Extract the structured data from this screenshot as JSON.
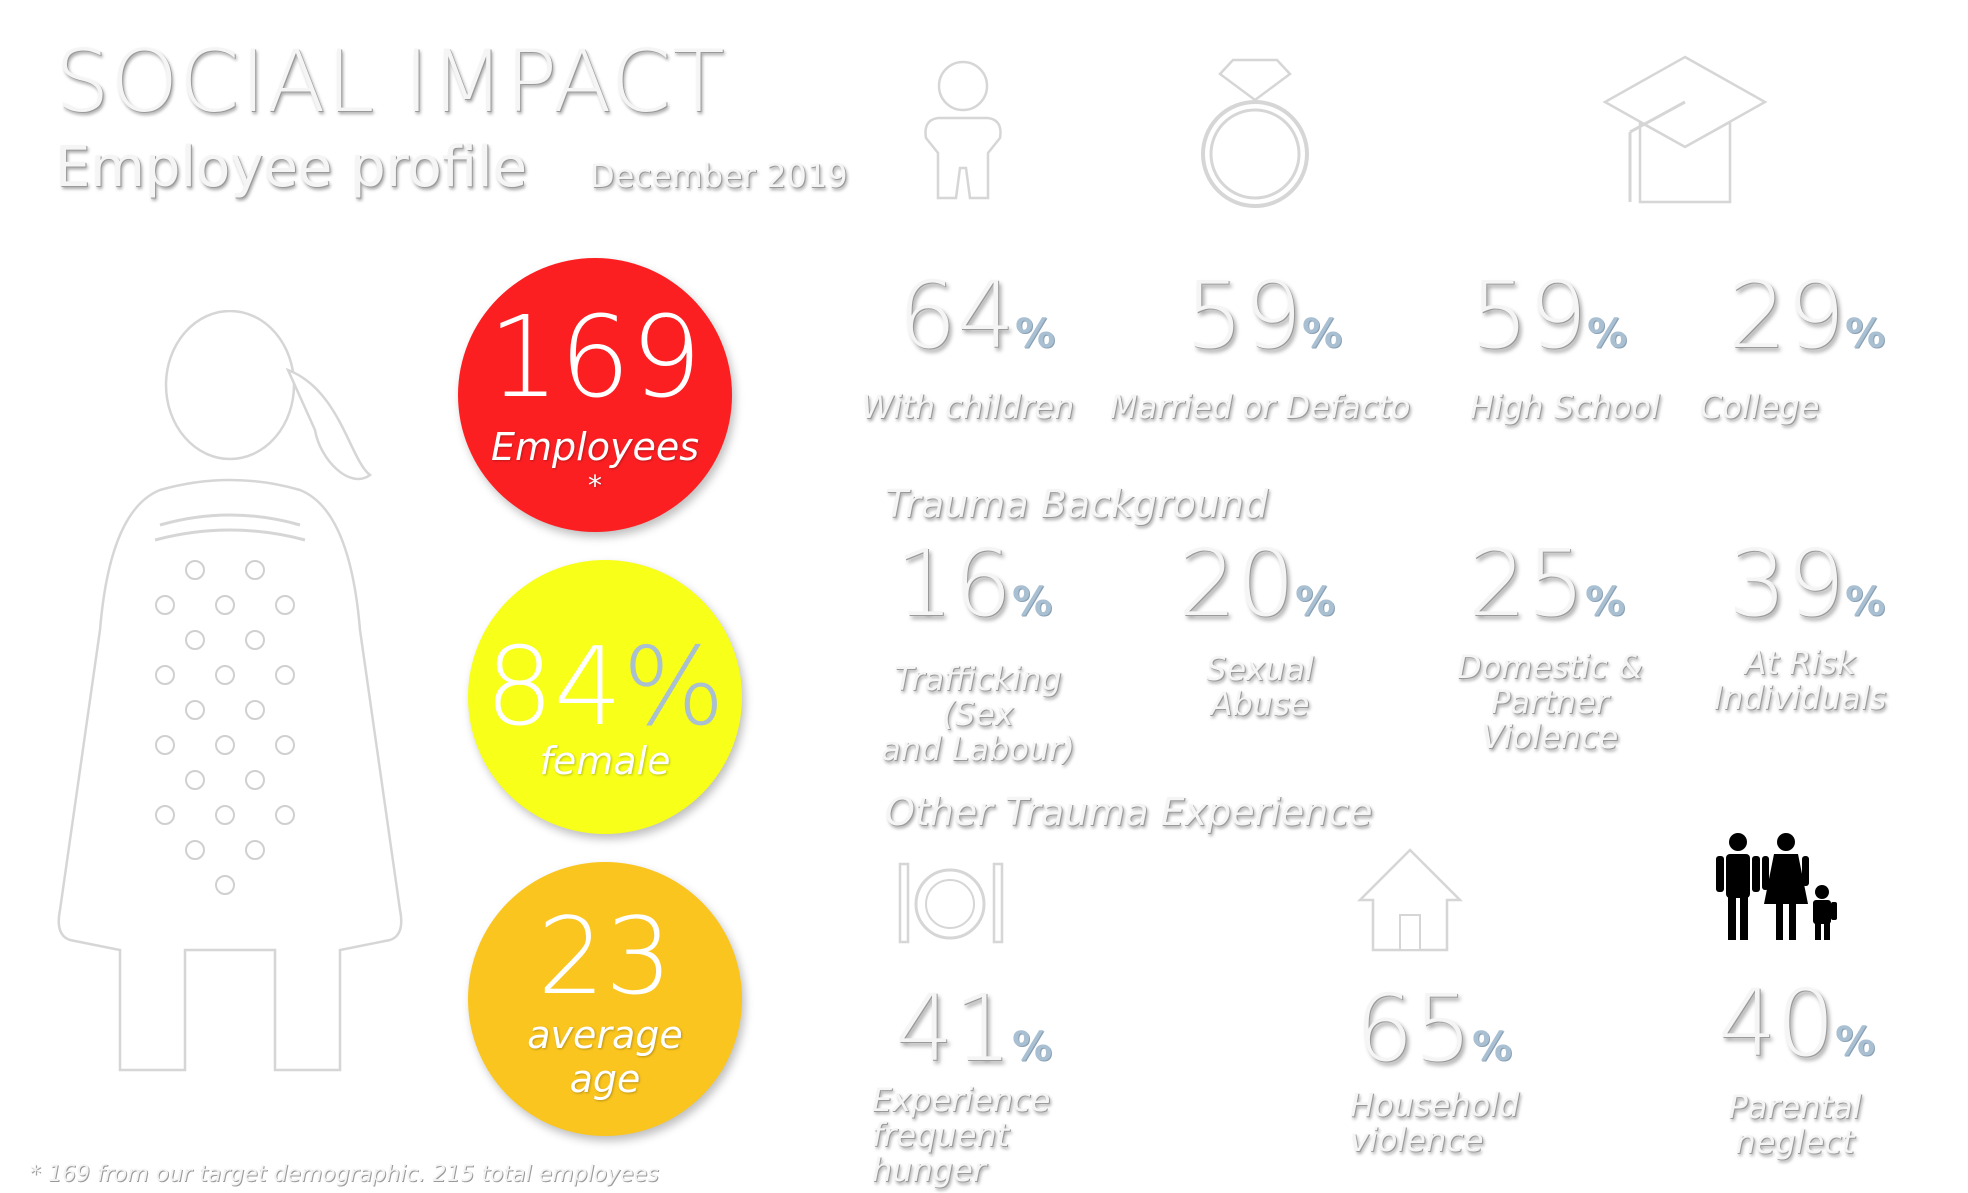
{
  "header": {
    "title": "SOCIAL IMPACT",
    "subtitle": "Employee profile",
    "date": "December 2019"
  },
  "circles": [
    {
      "value": "169",
      "label": "Employees",
      "note": "*",
      "color": "#fb1f22"
    },
    {
      "value": "84",
      "symbol": "%",
      "label": "female",
      "color": "#f8ff18"
    },
    {
      "value": "23",
      "label": "average",
      "label2": "age",
      "color": "#fac51e"
    }
  ],
  "profile": [
    {
      "value": "64",
      "unit": "%",
      "label": "With children",
      "icon": "baby-icon"
    },
    {
      "value": "59",
      "unit": "%",
      "label": "Married or Defacto",
      "icon": "ring-icon"
    },
    {
      "value": "59",
      "unit": "%",
      "label": "High School",
      "icon": "graduation-cap-icon"
    },
    {
      "value": "29",
      "unit": "%",
      "label": "College"
    }
  ],
  "trauma_background": {
    "heading": "Trauma Background",
    "items": [
      {
        "value": "16",
        "unit": "%",
        "label_lines": [
          "Trafficking (Sex",
          "and Labour)"
        ]
      },
      {
        "value": "20",
        "unit": "%",
        "label_lines": [
          "Sexual",
          "Abuse"
        ]
      },
      {
        "value": "25",
        "unit": "%",
        "label_lines": [
          "Domestic &",
          "Partner",
          "Violence"
        ]
      },
      {
        "value": "39",
        "unit": "%",
        "label_lines": [
          "At Risk",
          "Individuals"
        ]
      }
    ]
  },
  "other_trauma": {
    "heading": "Other Trauma Experience",
    "items": [
      {
        "value": "41",
        "unit": "%",
        "label_lines": [
          "Experience",
          "frequent hunger"
        ],
        "icon": "plate-cutlery-icon"
      },
      {
        "value": "65",
        "unit": "%",
        "label_lines": [
          "Household",
          "violence"
        ],
        "icon": "house-icon"
      },
      {
        "value": "40",
        "unit": "%",
        "label_lines": [
          "Parental",
          "neglect"
        ],
        "icon": "family-icon"
      }
    ]
  },
  "footnote": "* 169 from our target demographic.  215 total employees",
  "icons": [
    "woman-figure-icon",
    "baby-icon",
    "ring-icon",
    "graduation-cap-icon",
    "plate-cutlery-icon",
    "house-icon",
    "family-icon"
  ]
}
